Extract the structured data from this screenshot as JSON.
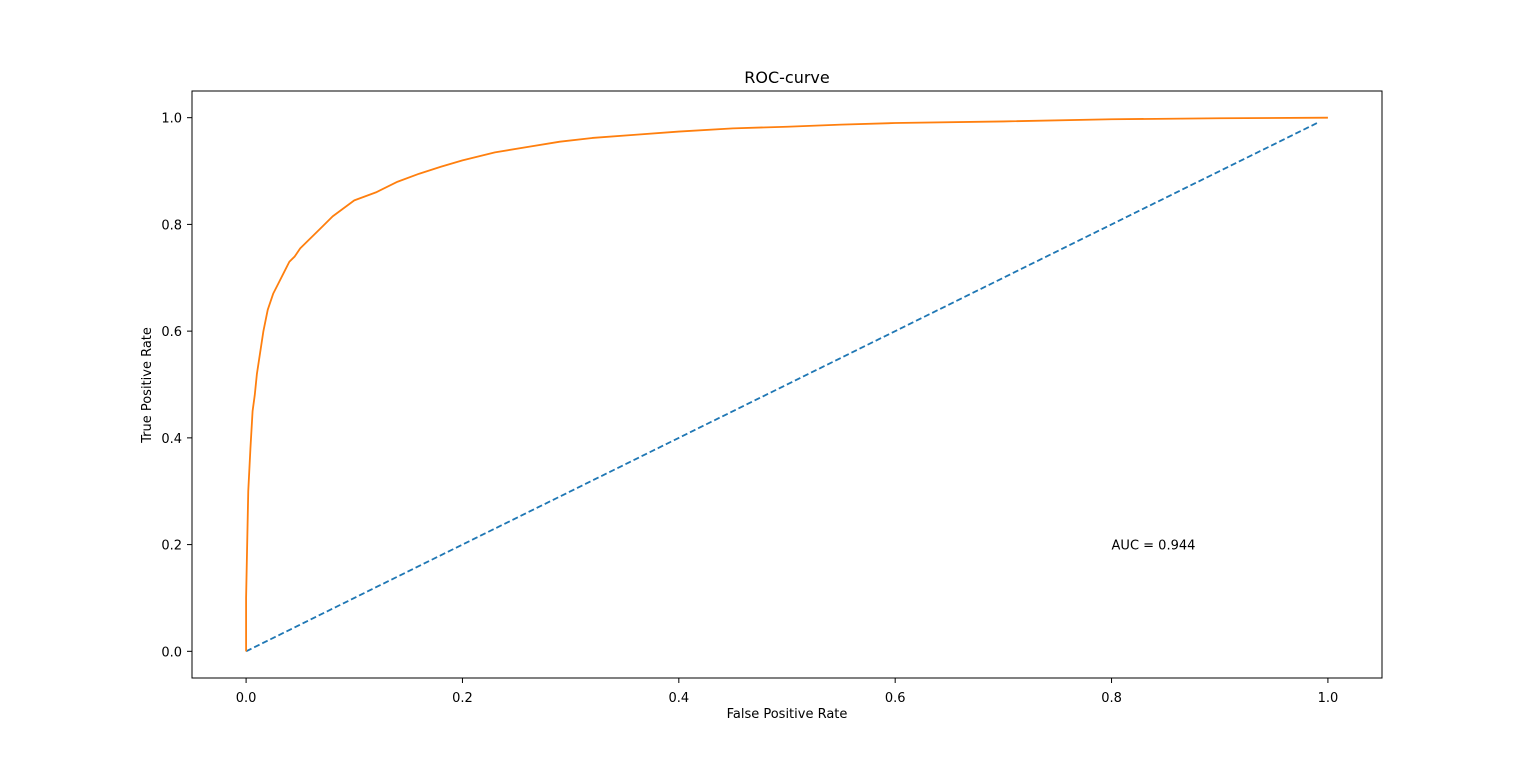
{
  "chart_data": {
    "type": "line",
    "title": "ROC-curve",
    "xlabel": "False Positive Rate",
    "ylabel": "True Positive Rate",
    "xlim": [
      -0.05,
      1.05
    ],
    "ylim": [
      -0.05,
      1.05
    ],
    "grid": false,
    "x_ticks": [
      "0.0",
      "0.2",
      "0.4",
      "0.6",
      "0.8",
      "1.0"
    ],
    "y_ticks": [
      "0.0",
      "0.2",
      "0.4",
      "0.6",
      "0.8",
      "1.0"
    ],
    "annotation": {
      "text": "AUC = 0.944",
      "x": 0.8,
      "y": 0.2
    },
    "series": [
      {
        "style": "dashed",
        "color": "#1f77b4",
        "x": [
          0.0,
          0.99
        ],
        "y": [
          0.0,
          0.99
        ]
      },
      {
        "style": "solid",
        "color": "#ff7f0e",
        "x": [
          0.0,
          0.0,
          0.001,
          0.002,
          0.004,
          0.006,
          0.008,
          0.01,
          0.013,
          0.016,
          0.02,
          0.025,
          0.03,
          0.035,
          0.04,
          0.045,
          0.05,
          0.06,
          0.07,
          0.08,
          0.09,
          0.1,
          0.12,
          0.14,
          0.16,
          0.18,
          0.2,
          0.23,
          0.26,
          0.29,
          0.32,
          0.36,
          0.4,
          0.45,
          0.5,
          0.55,
          0.6,
          0.7,
          0.8,
          0.9,
          1.0
        ],
        "y": [
          0.0,
          0.1,
          0.2,
          0.3,
          0.38,
          0.45,
          0.48,
          0.52,
          0.56,
          0.6,
          0.64,
          0.67,
          0.69,
          0.71,
          0.73,
          0.74,
          0.755,
          0.775,
          0.795,
          0.815,
          0.83,
          0.845,
          0.86,
          0.88,
          0.895,
          0.908,
          0.92,
          0.935,
          0.945,
          0.955,
          0.962,
          0.968,
          0.974,
          0.98,
          0.983,
          0.987,
          0.99,
          0.993,
          0.997,
          0.999,
          1.0
        ]
      }
    ]
  }
}
